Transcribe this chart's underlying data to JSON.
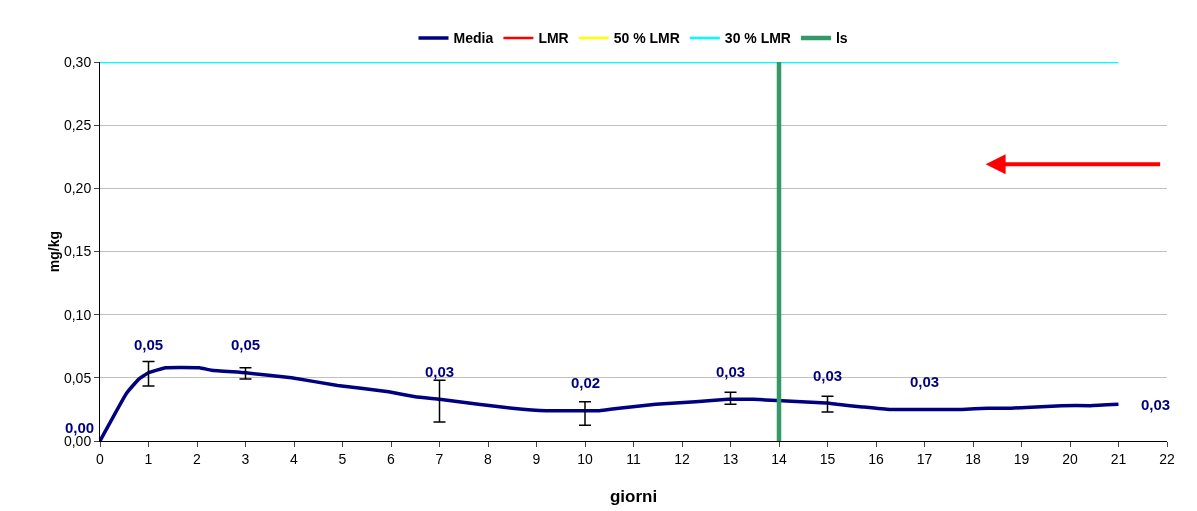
{
  "chart_data": {
    "type": "line",
    "xlabel": "giorni",
    "ylabel": "mg/kg",
    "xlim": [
      0,
      22
    ],
    "xticks": [
      0,
      1,
      2,
      3,
      4,
      5,
      6,
      7,
      8,
      9,
      10,
      11,
      12,
      13,
      14,
      15,
      16,
      17,
      18,
      19,
      20,
      21,
      22
    ],
    "ylim": [
      0,
      0.3
    ],
    "yticks": [
      {
        "value": 0,
        "label": "0,00"
      },
      {
        "value": 0.05,
        "label": "0,05"
      },
      {
        "value": 0.1,
        "label": "0,10"
      },
      {
        "value": 0.15,
        "label": "0,15"
      },
      {
        "value": 0.2,
        "label": "0,20"
      },
      {
        "value": 0.25,
        "label": "0,25"
      },
      {
        "value": 0.3,
        "label": "0,30"
      }
    ],
    "grid": "y",
    "legend": "top",
    "marker": "none",
    "line_style": "solid",
    "series": [
      {
        "name": "Media",
        "color": "#000080",
        "x": [
          0,
          0.55,
          0.8,
          1,
          1.35,
          2.05,
          2.3,
          3,
          3.95,
          4.9,
          5.95,
          6.5,
          7,
          7.4,
          7.8,
          8.5,
          9.2,
          10,
          10.3,
          10.7,
          11.46,
          12.28,
          12.95,
          13,
          13.47,
          13.96,
          14.97,
          15,
          15.2,
          15.72,
          16.28,
          17,
          17.77,
          18.3,
          18.78,
          19.83,
          20.42,
          21
        ],
        "values": [
          0,
          0.038,
          0.049,
          0.054,
          0.058,
          0.058,
          0.056,
          0.054,
          0.05,
          0.044,
          0.039,
          0.035,
          0.033,
          0.031,
          0.029,
          0.026,
          0.024,
          0.024,
          0.024,
          0.026,
          0.029,
          0.031,
          0.033,
          0.033,
          0.033,
          0.032,
          0.03,
          0.03,
          0.029,
          0.027,
          0.025,
          0.025,
          0.025,
          0.026,
          0.026,
          0.028,
          0.028,
          0.029
        ],
        "value_labels": [
          "0,00",
          null,
          null,
          "0,05",
          null,
          null,
          null,
          "0,05",
          null,
          null,
          null,
          null,
          "0,03",
          null,
          null,
          null,
          null,
          "0,02",
          null,
          null,
          null,
          null,
          null,
          "0,03",
          null,
          null,
          null,
          "0,03",
          null,
          null,
          null,
          "0,03",
          null,
          null,
          null,
          null,
          null,
          "0,03"
        ],
        "errors": [
          null,
          null,
          null,
          [
            0.0435,
            0.063
          ],
          null,
          null,
          null,
          [
            0.049,
            0.058
          ],
          null,
          null,
          null,
          null,
          [
            0.015,
            0.048
          ],
          null,
          null,
          null,
          null,
          [
            0.0125,
            0.031
          ],
          null,
          null,
          null,
          null,
          null,
          [
            0.029,
            0.0385
          ],
          null,
          null,
          null,
          [
            0.023,
            0.0355
          ],
          null,
          null,
          null,
          null,
          null,
          null,
          null,
          null,
          null,
          null
        ]
      },
      {
        "name": "LMR",
        "color": "#ff0000"
      },
      {
        "name": "50 % LMR",
        "color": "#ffff00"
      },
      {
        "name": "30 % LMR",
        "color": "#00ffff",
        "x": [
          0,
          21
        ],
        "values": [
          0.3,
          0.3
        ]
      },
      {
        "name": "ls",
        "color": "#339966",
        "x": [
          14,
          14
        ],
        "values": [
          0,
          0.3
        ]
      }
    ]
  }
}
